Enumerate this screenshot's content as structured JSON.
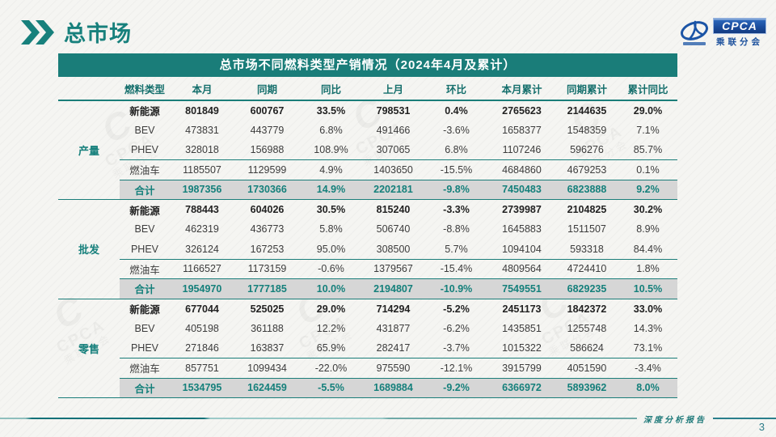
{
  "page": {
    "section_title": "总市场",
    "footer_label": "深度分析报告",
    "page_number": "3"
  },
  "logo": {
    "name": "CPCA",
    "subtitle": "乘联分会"
  },
  "colors": {
    "teal_accent": "#1a7d79",
    "total_row_bg": "#d6d6d6",
    "logo_blue": "#1a4f9c",
    "title_text": "#ffffff"
  },
  "table": {
    "title": "总市场不同燃料类型产销情况（2024年4月及累计）",
    "columns": [
      "燃料类型",
      "本月",
      "同期",
      "同比",
      "上月",
      "环比",
      "本月累计",
      "同期累计",
      "累计同比"
    ],
    "groups": [
      {
        "label": "产量",
        "rows": [
          {
            "type": "新能源",
            "bold": true,
            "values": [
              "801849",
              "600767",
              "33.5%",
              "798531",
              "0.4%",
              "2765623",
              "2144635",
              "29.0%"
            ]
          },
          {
            "type": "BEV",
            "values": [
              "473831",
              "443779",
              "6.8%",
              "491466",
              "-3.6%",
              "1658377",
              "1548359",
              "7.1%"
            ]
          },
          {
            "type": "PHEV",
            "values": [
              "328018",
              "156988",
              "108.9%",
              "307065",
              "6.8%",
              "1107246",
              "596276",
              "85.7%"
            ]
          },
          {
            "type": "燃油车",
            "line_top": true,
            "values": [
              "1185507",
              "1129599",
              "4.9%",
              "1403650",
              "-15.5%",
              "4684860",
              "4679253",
              "0.1%"
            ]
          },
          {
            "type": "合计",
            "total": true,
            "values": [
              "1987356",
              "1730366",
              "14.9%",
              "2202181",
              "-9.8%",
              "7450483",
              "6823888",
              "9.2%"
            ]
          }
        ]
      },
      {
        "label": "批发",
        "rows": [
          {
            "type": "新能源",
            "bold": true,
            "values": [
              "788443",
              "604026",
              "30.5%",
              "815240",
              "-3.3%",
              "2739987",
              "2104825",
              "30.2%"
            ]
          },
          {
            "type": "BEV",
            "values": [
              "462319",
              "436773",
              "5.8%",
              "506740",
              "-8.8%",
              "1645883",
              "1511507",
              "8.9%"
            ]
          },
          {
            "type": "PHEV",
            "values": [
              "326124",
              "167253",
              "95.0%",
              "308500",
              "5.7%",
              "1094104",
              "593318",
              "84.4%"
            ]
          },
          {
            "type": "燃油车",
            "line_top": true,
            "values": [
              "1166527",
              "1173159",
              "-0.6%",
              "1379567",
              "-15.4%",
              "4809564",
              "4724410",
              "1.8%"
            ]
          },
          {
            "type": "合计",
            "total": true,
            "values": [
              "1954970",
              "1777185",
              "10.0%",
              "2194807",
              "-10.9%",
              "7549551",
              "6829235",
              "10.5%"
            ]
          }
        ]
      },
      {
        "label": "零售",
        "rows": [
          {
            "type": "新能源",
            "bold": true,
            "values": [
              "677044",
              "525025",
              "29.0%",
              "714294",
              "-5.2%",
              "2451173",
              "1842372",
              "33.0%"
            ]
          },
          {
            "type": "BEV",
            "values": [
              "405198",
              "361188",
              "12.2%",
              "431877",
              "-6.2%",
              "1435851",
              "1255748",
              "14.3%"
            ]
          },
          {
            "type": "PHEV",
            "values": [
              "271846",
              "163837",
              "65.9%",
              "282417",
              "-3.7%",
              "1015322",
              "586624",
              "73.1%"
            ]
          },
          {
            "type": "燃油车",
            "line_top": true,
            "values": [
              "857751",
              "1099434",
              "-22.0%",
              "975590",
              "-12.1%",
              "3915799",
              "4051590",
              "-3.4%"
            ]
          },
          {
            "type": "合计",
            "total": true,
            "values": [
              "1534795",
              "1624459",
              "-5.5%",
              "1689884",
              "-9.2%",
              "6366972",
              "5893962",
              "8.0%"
            ]
          }
        ]
      }
    ]
  }
}
